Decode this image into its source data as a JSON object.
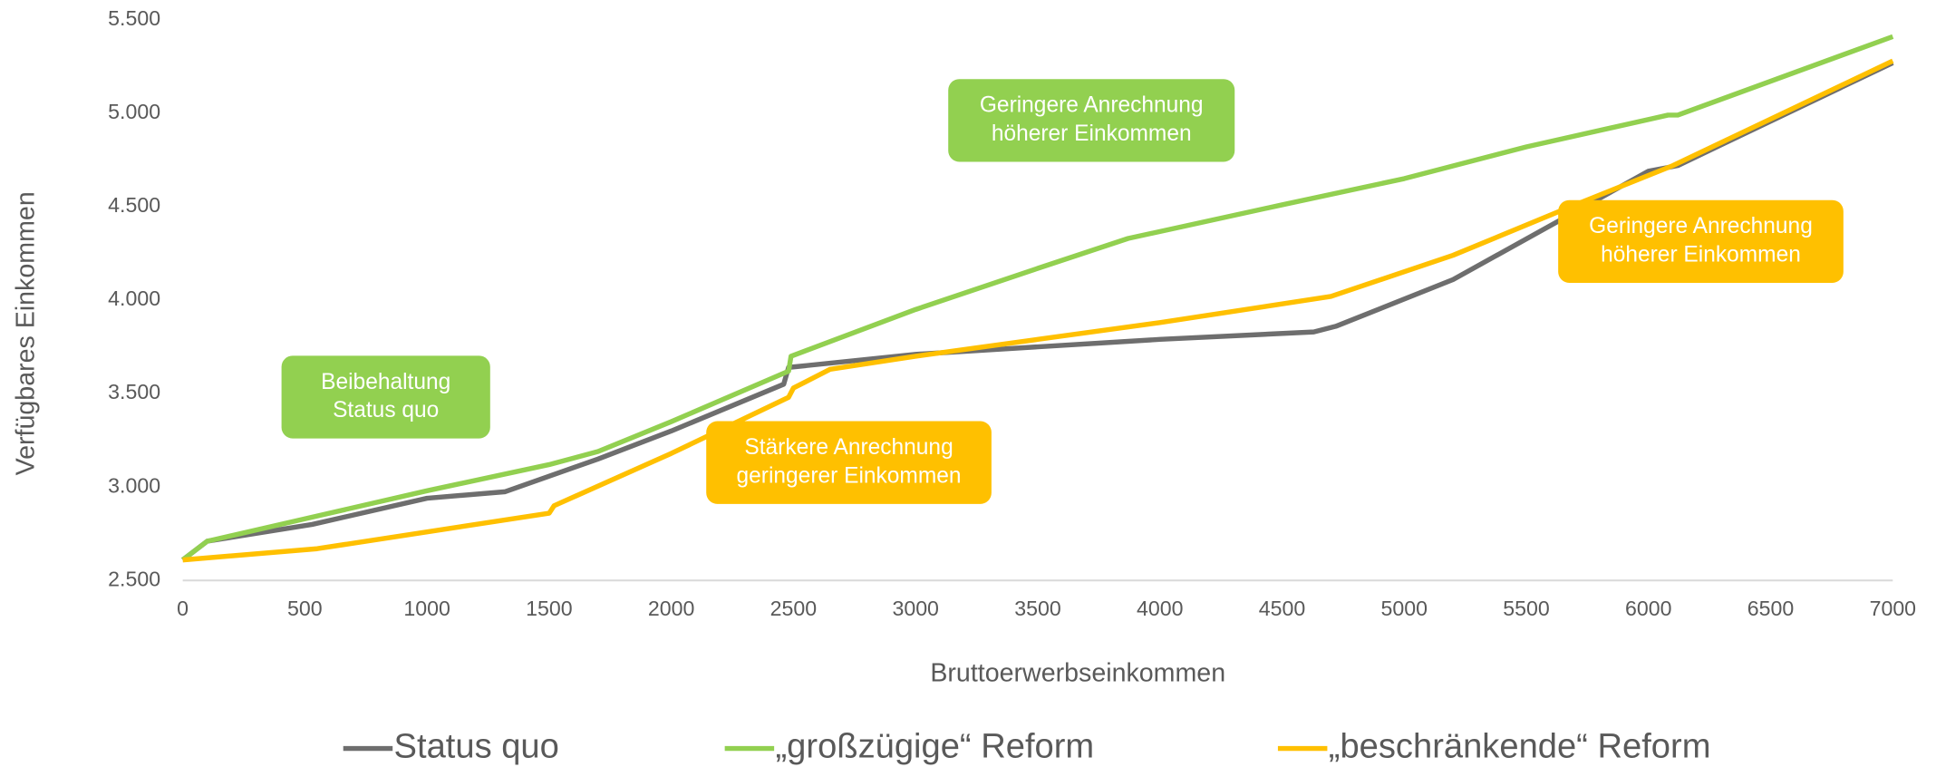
{
  "chart_data": {
    "type": "line",
    "xlabel": "Bruttoerwerbseinkommen",
    "ylabel": "Verfügbares Einkommen",
    "xlim": [
      0,
      7000
    ],
    "xticks": [
      0,
      500,
      1000,
      1500,
      2000,
      2500,
      3000,
      3500,
      4000,
      4500,
      5000,
      5500,
      6000,
      6500,
      7000
    ],
    "ylim": [
      2500,
      5500
    ],
    "yticks": [
      {
        "value": 2500,
        "label": "2.500"
      },
      {
        "value": 3000,
        "label": "3.000"
      },
      {
        "value": 3500,
        "label": "3.500"
      },
      {
        "value": 4000,
        "label": "4.000"
      },
      {
        "value": 4500,
        "label": "4.500"
      },
      {
        "value": 5000,
        "label": "5.000"
      },
      {
        "value": 5500,
        "label": "5.500"
      }
    ],
    "legend": "bottom",
    "series": [
      {
        "name": "Status quo",
        "color": "#6e6e6e",
        "x": [
          0,
          100,
          530,
          1000,
          1320,
          1700,
          2000,
          2460,
          2480,
          3000,
          4000,
          4630,
          4720,
          5200,
          6000,
          6120,
          7000
        ],
        "values": [
          2610,
          2710,
          2800,
          2940,
          2975,
          3150,
          3300,
          3550,
          3640,
          3710,
          3790,
          3830,
          3860,
          4110,
          4690,
          4720,
          5270
        ]
      },
      {
        "name": "„großzügige“ Reform",
        "color": "#92d050",
        "x": [
          0,
          100,
          500,
          1000,
          1500,
          1700,
          2000,
          2480,
          2490,
          3000,
          3500,
          3870,
          4500,
          5000,
          5500,
          6080,
          6120,
          7000
        ],
        "values": [
          2610,
          2710,
          2830,
          2980,
          3120,
          3190,
          3350,
          3620,
          3700,
          3950,
          4170,
          4330,
          4510,
          4650,
          4820,
          4990,
          4990,
          5410
        ]
      },
      {
        "name": "„beschränkende“ Reform",
        "color": "#ffc000",
        "x": [
          0,
          550,
          1000,
          1500,
          1520,
          2000,
          2480,
          2500,
          2650,
          3000,
          3500,
          4000,
          4700,
          5200,
          5700,
          6100,
          7000
        ],
        "values": [
          2610,
          2670,
          2760,
          2860,
          2900,
          3180,
          3480,
          3530,
          3630,
          3700,
          3790,
          3880,
          4020,
          4240,
          4510,
          4720,
          5280
        ]
      }
    ],
    "annotations": [
      {
        "lines": [
          "Geringere Anrechnung",
          "höherer Einkommen"
        ],
        "color": "#92d050"
      },
      {
        "lines": [
          "Beibehaltung",
          "Status quo"
        ],
        "color": "#92d050"
      },
      {
        "lines": [
          "Stärkere Anrechnung",
          "geringerer Einkommen"
        ],
        "color": "#ffc000"
      },
      {
        "lines": [
          "Geringere Anrechnung",
          "höherer Einkommen"
        ],
        "color": "#ffc000"
      }
    ]
  }
}
